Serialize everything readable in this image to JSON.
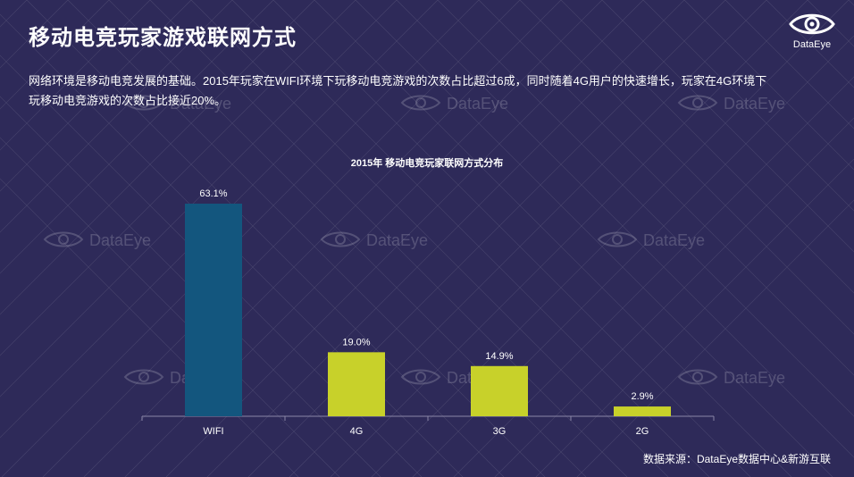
{
  "page": {
    "title": "移动电竞玩家游戏联网方式",
    "description": "网络环境是移动电竞发展的基础。2015年玩家在WIFI环境下玩移动电竞游戏的次数占比超过6成，同时随着4G用户的快速增长，玩家在4G环境下玩移动电竞游戏的次数占比接近20%。",
    "source": "数据来源：DataEye数据中心&新游互联"
  },
  "brand": {
    "name": "DataEye",
    "icon": "eye-logo-icon"
  },
  "watermark": {
    "text": "DataEye"
  },
  "colors": {
    "background": "#2e2a59",
    "bar_primary": "#13567e",
    "bar_secondary": "#c8d12a",
    "axis": "#8a86a8"
  },
  "chart_data": {
    "type": "bar",
    "title": "2015年 移动电竞玩家联网方式分布",
    "categories": [
      "WIFI",
      "4G",
      "3G",
      "2G"
    ],
    "values": [
      63.1,
      19.0,
      14.9,
      2.9
    ],
    "value_labels": [
      "63.1%",
      "19.0%",
      "14.9%",
      "2.9%"
    ],
    "bar_colors": [
      "#13567e",
      "#c8d12a",
      "#c8d12a",
      "#c8d12a"
    ],
    "ylim": [
      0,
      63.1
    ],
    "xlabel": "",
    "ylabel": "",
    "grid": false,
    "legend": "none"
  }
}
